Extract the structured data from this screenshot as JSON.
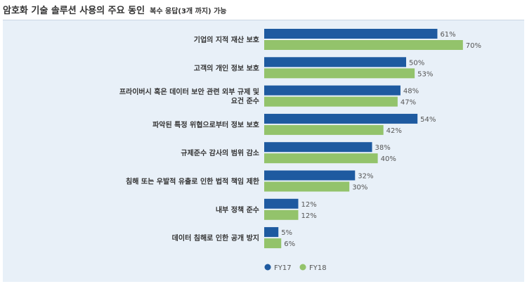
{
  "title": "암호화 기술 솔루션 사용의 주요 동인",
  "subtitle": "복수 응답(3개 까지) 가능",
  "chart_data": {
    "type": "bar",
    "orientation": "horizontal",
    "categories": [
      [
        "기업의 지적 재산 보호"
      ],
      [
        "고객의 개인 정보 보호"
      ],
      [
        "프라이버시 혹은 데이터 보안 관련 외부 규제 및",
        "요건 준수"
      ],
      [
        "파악된 특정 위협으로부터 정보 보호"
      ],
      [
        "규제준수 감사의 범위 감소"
      ],
      [
        "침해 또는 우발적 유출로 인한 법적 책임 제한"
      ],
      [
        "내부 정책 준수"
      ],
      [
        "데이터 침해로 인한 공개 방지"
      ]
    ],
    "series": [
      {
        "name": "FY17",
        "color": "#1e5aa0",
        "values": [
          61,
          50,
          48,
          54,
          38,
          32,
          12,
          5
        ]
      },
      {
        "name": "FY18",
        "color": "#93c36b",
        "values": [
          70,
          53,
          47,
          42,
          40,
          30,
          12,
          6
        ]
      }
    ],
    "value_suffix": "%",
    "legend_position": "bottom",
    "grid": false
  }
}
